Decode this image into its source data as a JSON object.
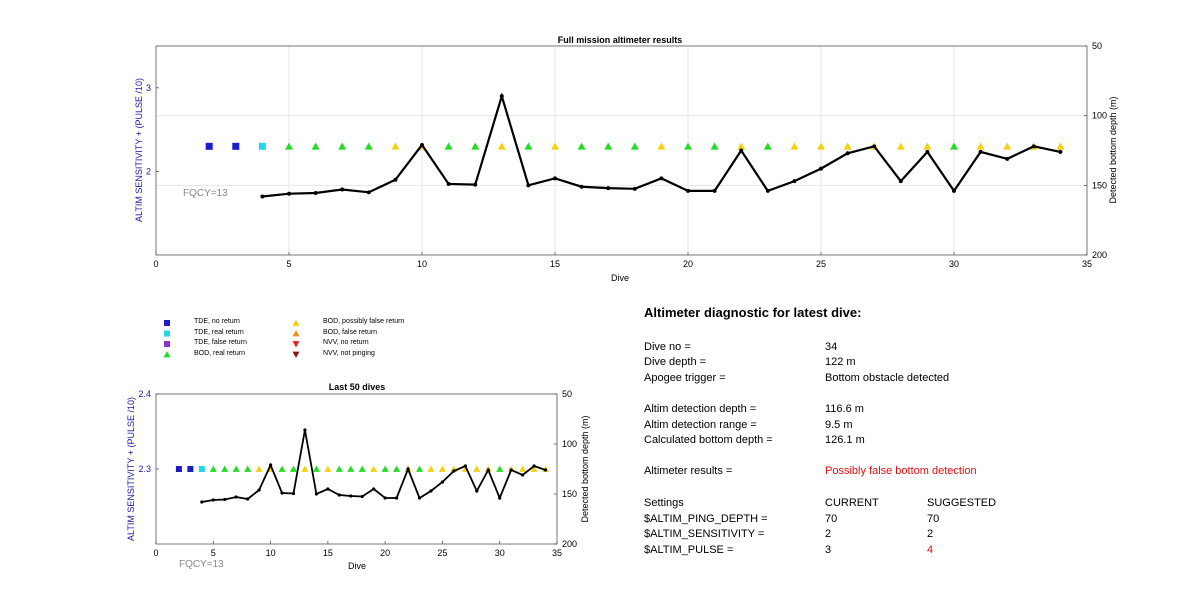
{
  "chart_data": [
    {
      "type": "line",
      "title": "Full mission altimeter results",
      "xlabel": "Dive",
      "ylabel_left": "ALTIM SENSITIVITY + (PULSE /10)",
      "ylabel_right": "Detected bottom depth (m)",
      "xlim": [
        0,
        35
      ],
      "ylim_left": [
        1,
        3.5
      ],
      "ylim_right": [
        50,
        200
      ],
      "right_axis_reversed": true,
      "xticks": [
        "0",
        "5",
        "10",
        "15",
        "20",
        "25",
        "30",
        "35"
      ],
      "yticks_left": [
        "2",
        "3"
      ],
      "yticks_right": [
        "50",
        "100",
        "150",
        "200"
      ],
      "annotation": "FQCY=13",
      "grid": true,
      "left_axis_color": "#1a1aaa",
      "markers_y": 2.3,
      "marker_dives": [
        2,
        3,
        4,
        5,
        6,
        7,
        8,
        9,
        10,
        11,
        12,
        13,
        14,
        15,
        16,
        17,
        18,
        19,
        20,
        21,
        22,
        23,
        24,
        25,
        26,
        27,
        28,
        29,
        30,
        31,
        32,
        33,
        34
      ],
      "marker_types": [
        "tde_no",
        "tde_no",
        "tde_real",
        "bod_real",
        "bod_real",
        "bod_real",
        "bod_real",
        "bod_false_possible",
        "bod_false_possible",
        "bod_real",
        "bod_real",
        "bod_false_possible",
        "bod_real",
        "bod_false_possible",
        "bod_real",
        "bod_real",
        "bod_real",
        "bod_false_possible",
        "bod_real",
        "bod_real",
        "bod_false_possible",
        "bod_real",
        "bod_false_possible",
        "bod_false_possible",
        "bod_false_possible",
        "bod_false_possible",
        "bod_false_possible",
        "bod_false_possible",
        "bod_real",
        "bod_false_possible",
        "bod_false_possible",
        "bod_false_possible",
        "bod_false_possible"
      ],
      "depth_dives": [
        4,
        5,
        6,
        7,
        8,
        9,
        10,
        11,
        12,
        13,
        14,
        15,
        16,
        17,
        18,
        19,
        20,
        21,
        22,
        23,
        24,
        25,
        26,
        27,
        28,
        29,
        30,
        31,
        32,
        33,
        34
      ],
      "depth_values": [
        158,
        156,
        155.5,
        153,
        155,
        146,
        121,
        149,
        149.5,
        86,
        150,
        145,
        151,
        152,
        152.5,
        145,
        154,
        154,
        125,
        154,
        147,
        138,
        127,
        122,
        147,
        126,
        154,
        126,
        131,
        122,
        126
      ]
    },
    {
      "type": "line",
      "title": "Last 50 dives",
      "xlabel": "Dive",
      "ylabel_left": "ALTIM SENSITIVITY + (PULSE /10)",
      "ylabel_right": "Detected bottom depth (m)",
      "xlim": [
        0,
        35
      ],
      "ylim_left": [
        2.2,
        2.4
      ],
      "ylim_right": [
        50,
        200
      ],
      "right_axis_reversed": true,
      "xticks": [
        "0",
        "5",
        "10",
        "15",
        "20",
        "25",
        "30",
        "35"
      ],
      "yticks_left": [
        "2.3",
        "2.4"
      ],
      "yticks_right": [
        "50",
        "100",
        "150",
        "200"
      ],
      "annotation": "FQCY=13",
      "grid": false
    }
  ],
  "legend": [
    {
      "label": "TDE, no return",
      "shape": "square",
      "color": "#1c1cc8"
    },
    {
      "label": "TDE, real return",
      "shape": "square",
      "color": "#22d8e8"
    },
    {
      "label": "TDE, false return",
      "shape": "square",
      "color": "#9030c8"
    },
    {
      "label": "BOD, real return",
      "shape": "triangle-up",
      "color": "#22dd22"
    },
    {
      "label": "BOD, possibly false return",
      "shape": "triangle-up",
      "color": "#f4d010"
    },
    {
      "label": "BOD, false return",
      "shape": "triangle-up",
      "color": "#f09010"
    },
    {
      "label": "NVV, no return",
      "shape": "triangle-down",
      "color": "#e02020"
    },
    {
      "label": "NVV, not pinging",
      "shape": "triangle-down",
      "color": "#901010"
    }
  ],
  "diagnostic": {
    "title": "Altimeter diagnostic for latest dive:",
    "dive_no_label": "Dive no =",
    "dive_no": "34",
    "dive_depth_label": "Dive depth =",
    "dive_depth": "122 m",
    "apogee_label": "Apogee trigger =",
    "apogee": "Bottom obstacle detected",
    "det_depth_label": "Altim detection depth =",
    "det_depth": "116.6 m",
    "det_range_label": "Altim detection range =",
    "det_range": "9.5 m",
    "bottom_label": "Calculated bottom depth =",
    "bottom": "126.1 m",
    "results_label": "Altimeter results =",
    "results": "Possibly false bottom detection",
    "settings_label": "Settings",
    "current_label": "CURRENT",
    "suggested_label": "SUGGESTED",
    "ping_depth_label": "$ALTIM_PING_DEPTH =",
    "ping_depth_current": "70",
    "ping_depth_suggested": "70",
    "sensitivity_label": "$ALTIM_SENSITIVITY =",
    "sensitivity_current": "2",
    "sensitivity_suggested": "2",
    "pulse_label": "$ALTIM_PULSE =",
    "pulse_current": "3",
    "pulse_suggested": "4",
    "warning_color": "#e01010"
  }
}
